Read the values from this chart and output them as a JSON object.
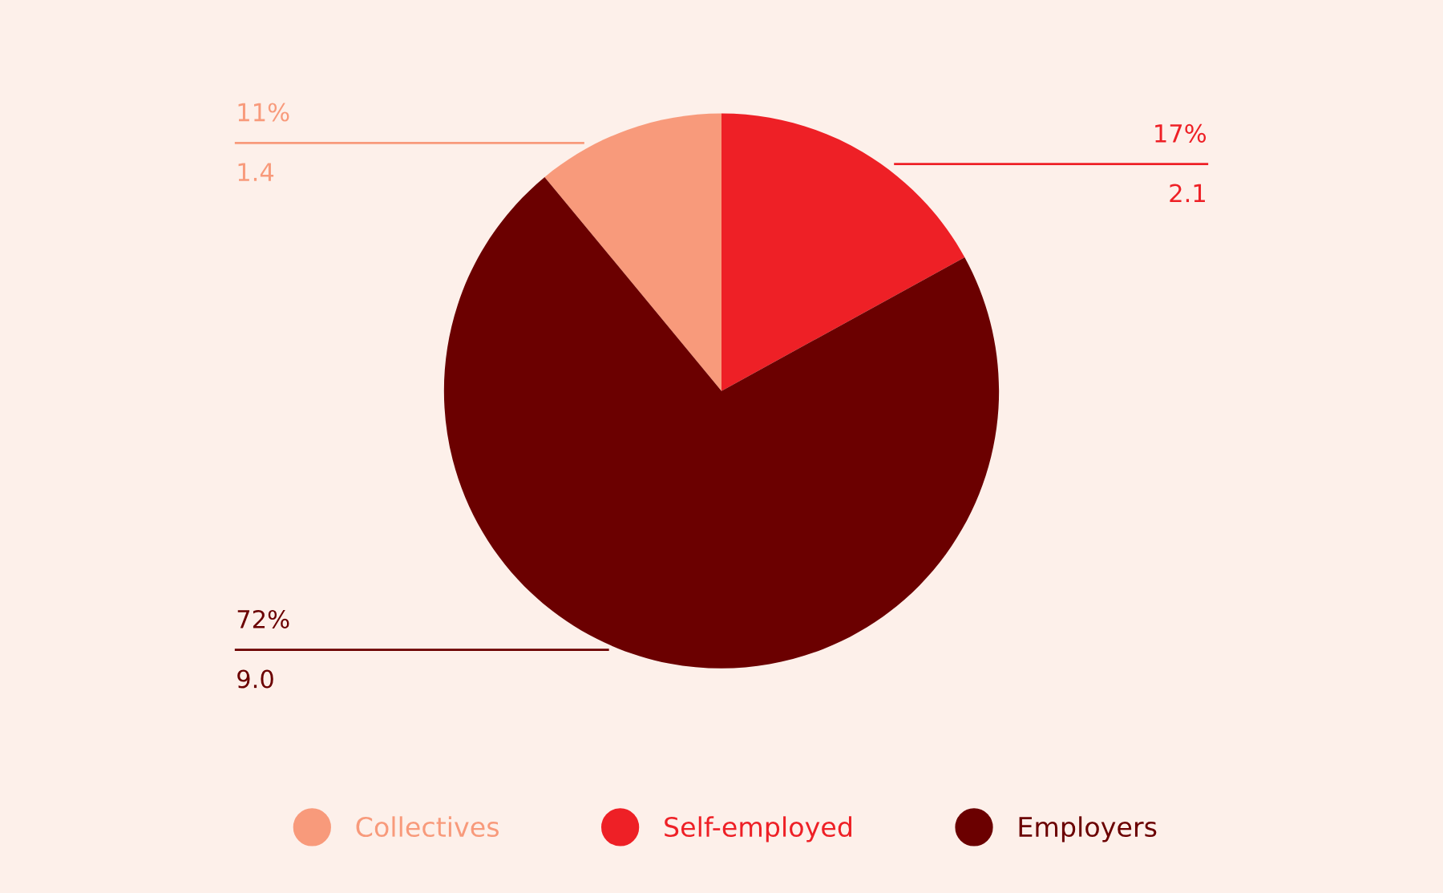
{
  "chart_data": {
    "type": "pie",
    "categories": [
      "Collectives",
      "Self-employed",
      "Employers"
    ],
    "values": [
      11,
      17,
      72
    ],
    "value_labels": [
      "11%\n1.4",
      "17%\n2.1",
      "72%\n9.0"
    ],
    "colors": [
      "#f89a7b",
      "#ee2026",
      "#6b0000"
    ],
    "legend": "bottom"
  }
}
